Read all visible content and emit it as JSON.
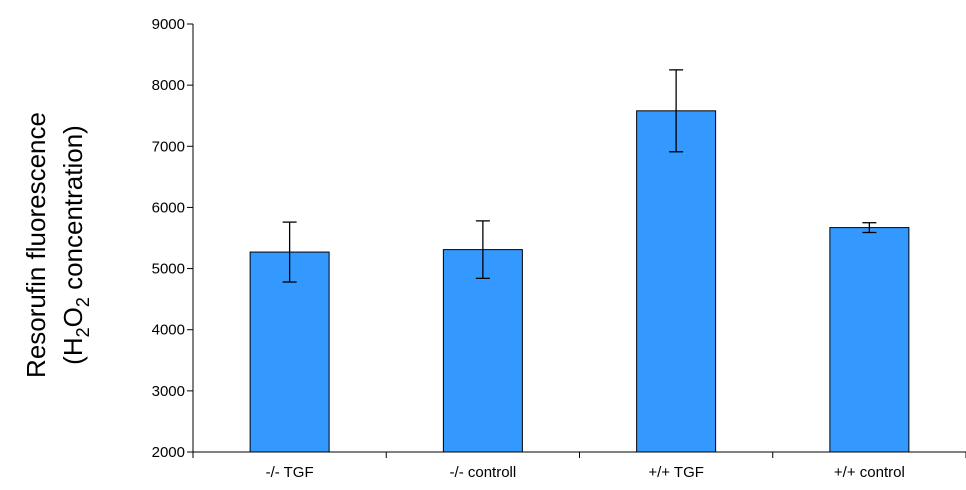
{
  "chart_data": {
    "type": "bar",
    "title": "",
    "xlabel": "",
    "ylabel_line1": "Resorufin fluorescence",
    "ylabel_line2": {
      "open": "(H",
      "sub1": "2",
      "mid": "O",
      "sub2": "2",
      "close": " concentration)"
    },
    "categories": [
      "-/- TGF",
      "-/- controll",
      "+/+ TGF",
      "+/+ control"
    ],
    "values": [
      5270,
      5310,
      7580,
      5670
    ],
    "error_low": [
      4780,
      4840,
      6910,
      5590
    ],
    "error_high": [
      5760,
      5780,
      8250,
      5750
    ],
    "ylim": [
      2000,
      9000
    ],
    "yticks": [
      2000,
      3000,
      4000,
      5000,
      6000,
      7000,
      8000,
      9000
    ],
    "ytick_labels": [
      "2000",
      "3000",
      "4000",
      "5000",
      "6000",
      "7000",
      "8000",
      "9000"
    ],
    "grid": false,
    "colors": {
      "bar_fill": "#3399ff",
      "bar_stroke": "#000000",
      "axis": "#000000",
      "error_bar": "#000000"
    }
  }
}
